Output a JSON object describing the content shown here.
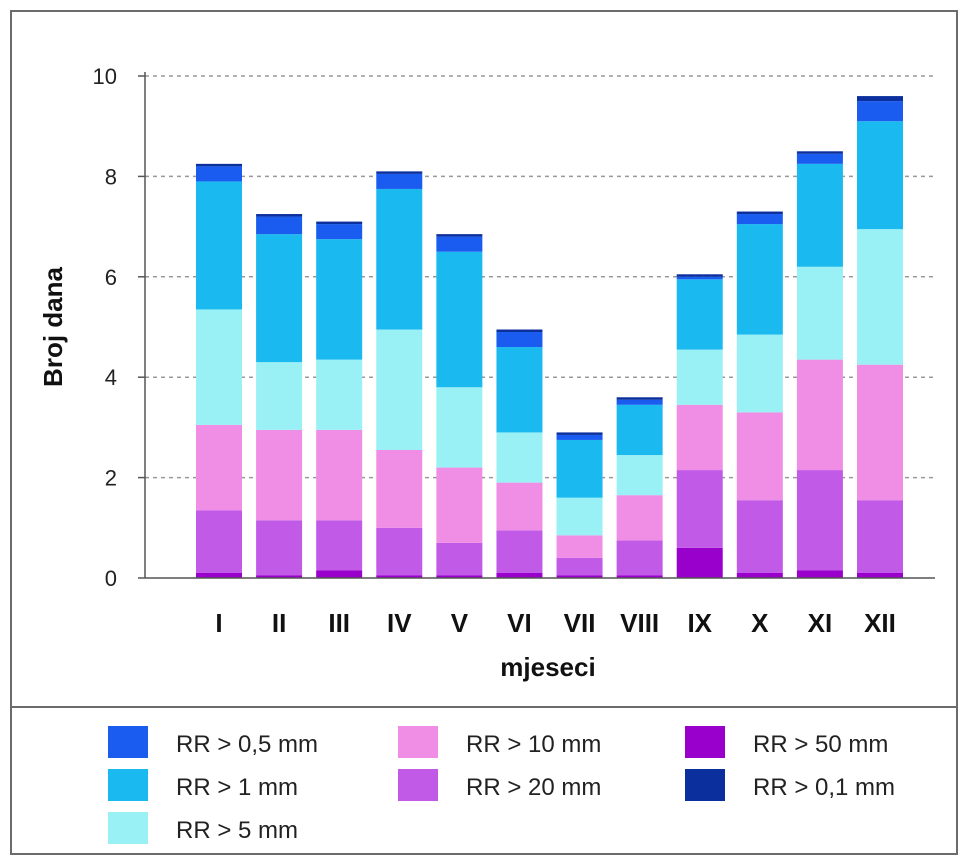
{
  "chart_data": {
    "type": "bar",
    "stacked": true,
    "categories": [
      "I",
      "II",
      "III",
      "IV",
      "V",
      "VI",
      "VII",
      "VIII",
      "IX",
      "X",
      "XI",
      "XII"
    ],
    "xlabel": "mjeseci",
    "ylabel": "Broj dana",
    "ylim": [
      0,
      10
    ],
    "yticks": [
      0,
      2,
      4,
      6,
      8,
      10
    ],
    "grid": "horizontal-dashed",
    "legend_position": "bottom",
    "series": [
      {
        "name": "RR > 50 mm",
        "color": "#9900cc",
        "values": [
          0.1,
          0.05,
          0.15,
          0.05,
          0.05,
          0.1,
          0.05,
          0.05,
          0.6,
          0.1,
          0.15,
          0.1
        ]
      },
      {
        "name": "RR > 20 mm",
        "color": "#c25ae8",
        "values": [
          1.25,
          1.1,
          1.0,
          0.95,
          0.65,
          0.85,
          0.35,
          0.7,
          1.55,
          1.45,
          2.0,
          1.45
        ]
      },
      {
        "name": "RR > 10 mm",
        "color": "#f08ee6",
        "values": [
          1.7,
          1.8,
          1.8,
          1.55,
          1.5,
          0.95,
          0.45,
          0.9,
          1.3,
          1.75,
          2.2,
          2.7
        ]
      },
      {
        "name": "RR > 5 mm",
        "color": "#99f0f5",
        "values": [
          2.3,
          1.35,
          1.4,
          2.4,
          1.6,
          1.0,
          0.75,
          0.8,
          1.1,
          1.55,
          1.85,
          2.7
        ]
      },
      {
        "name": "RR > 1 mm",
        "color": "#1ab9ef",
        "values": [
          2.55,
          2.55,
          2.4,
          2.8,
          2.7,
          1.7,
          1.15,
          1.0,
          1.4,
          2.2,
          2.05,
          2.15
        ]
      },
      {
        "name": "RR > 0,5 mm",
        "color": "#1a5cf0",
        "values": [
          0.3,
          0.35,
          0.3,
          0.3,
          0.3,
          0.3,
          0.1,
          0.1,
          0.05,
          0.2,
          0.2,
          0.4
        ]
      },
      {
        "name": "RR > 0,1 mm",
        "color": "#0b2f9c",
        "values": [
          0.05,
          0.05,
          0.05,
          0.05,
          0.05,
          0.05,
          0.05,
          0.05,
          0.05,
          0.05,
          0.05,
          0.1
        ]
      }
    ],
    "legend_order": [
      "RR > 0,5 mm",
      "RR > 1 mm",
      "RR > 5 mm",
      "RR > 10 mm",
      "RR > 20 mm",
      "RR > 50 mm",
      "RR > 0,1 mm"
    ]
  }
}
